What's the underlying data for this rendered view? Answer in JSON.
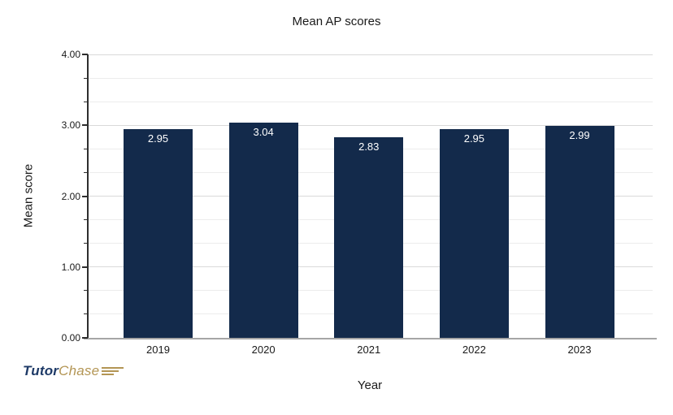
{
  "chart_data": {
    "type": "bar",
    "title": "Mean AP scores",
    "xlabel": "Year",
    "ylabel": "Mean score",
    "categories": [
      "2019",
      "2020",
      "2021",
      "2022",
      "2023"
    ],
    "values": [
      2.95,
      3.04,
      2.83,
      2.95,
      2.99
    ],
    "data_labels": [
      "2.95",
      "3.04",
      "2.83",
      "2.95",
      "2.99"
    ],
    "ylim": [
      0,
      4
    ],
    "y_major_tick_labels": [
      "0.00",
      "1.00",
      "2.00",
      "3.00",
      "4.00"
    ],
    "y_minor_divisions_per_major": 3,
    "grid": "horizontal",
    "legend": "none",
    "bar_color": "#132a4b",
    "data_label_color": "#ffffff"
  },
  "logo": {
    "part1": "Tutor",
    "part2": "Chase",
    "icon": "speed-lines-icon",
    "part1_color": "#1e3a67",
    "part2_color": "#b39554"
  }
}
